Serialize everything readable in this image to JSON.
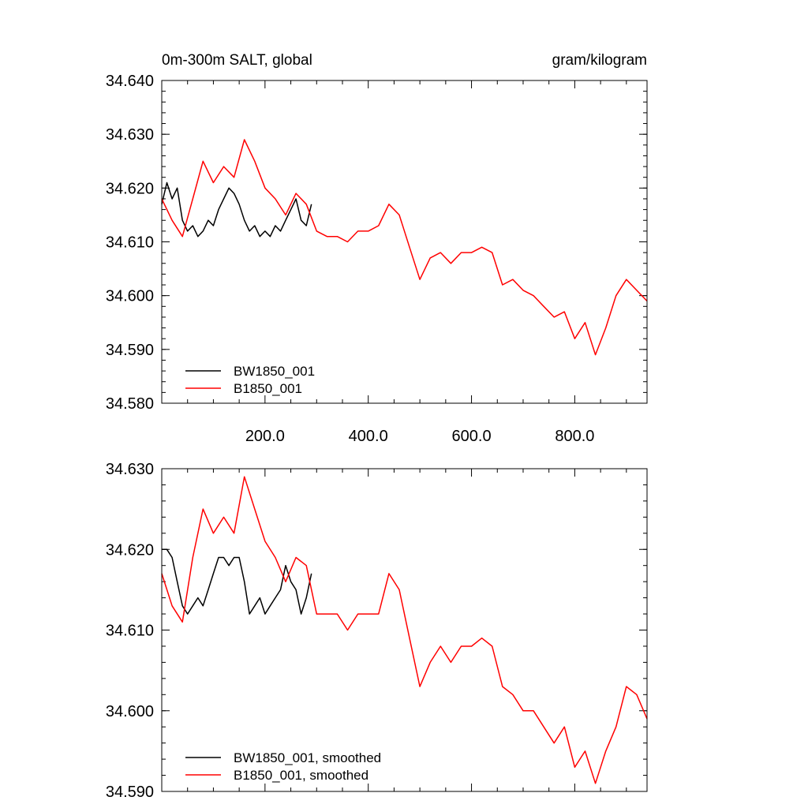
{
  "chart_data": [
    {
      "type": "line",
      "title_left": "0m-300m SALT, global",
      "title_right": "gram/kilogram",
      "xlim": [
        0,
        940
      ],
      "ylim": [
        34.58,
        34.64
      ],
      "x_ticks": [
        200,
        400,
        600,
        800
      ],
      "x_tick_labels": [
        "200.0",
        "400.0",
        "600.0",
        "800.0"
      ],
      "y_ticks": [
        34.58,
        34.59,
        34.6,
        34.61,
        34.62,
        34.63,
        34.64
      ],
      "y_tick_labels": [
        "34.580",
        "34.590",
        "34.600",
        "34.610",
        "34.620",
        "34.630",
        "34.640"
      ],
      "legend_position": "bottom-left",
      "colors": {
        "black": "#000000",
        "red": "#ff0000"
      },
      "series": [
        {
          "name": "BW1850_001",
          "color": "#000000",
          "x": [
            0,
            10,
            20,
            30,
            40,
            50,
            60,
            70,
            80,
            90,
            100,
            110,
            120,
            130,
            140,
            150,
            160,
            170,
            180,
            190,
            200,
            210,
            220,
            230,
            240,
            250,
            260,
            270,
            280,
            290
          ],
          "y": [
            34.617,
            34.621,
            34.618,
            34.62,
            34.614,
            34.612,
            34.613,
            34.611,
            34.612,
            34.614,
            34.613,
            34.616,
            34.618,
            34.62,
            34.619,
            34.617,
            34.614,
            34.612,
            34.613,
            34.611,
            34.612,
            34.611,
            34.613,
            34.612,
            34.614,
            34.616,
            34.618,
            34.614,
            34.613,
            34.617
          ]
        },
        {
          "name": "B1850_001",
          "color": "#ff0000",
          "x": [
            0,
            20,
            40,
            60,
            80,
            100,
            120,
            140,
            160,
            180,
            200,
            220,
            240,
            260,
            280,
            300,
            320,
            340,
            360,
            380,
            400,
            420,
            440,
            460,
            480,
            500,
            520,
            540,
            560,
            580,
            600,
            620,
            640,
            660,
            680,
            700,
            720,
            740,
            760,
            780,
            800,
            820,
            840,
            860,
            880,
            900,
            920,
            940
          ],
          "y": [
            34.618,
            34.614,
            34.611,
            34.618,
            34.625,
            34.621,
            34.624,
            34.622,
            34.629,
            34.625,
            34.62,
            34.618,
            34.615,
            34.619,
            34.617,
            34.612,
            34.611,
            34.611,
            34.61,
            34.612,
            34.612,
            34.613,
            34.617,
            34.615,
            34.609,
            34.603,
            34.607,
            34.608,
            34.606,
            34.608,
            34.608,
            34.609,
            34.608,
            34.602,
            34.603,
            34.601,
            34.6,
            34.598,
            34.596,
            34.597,
            34.592,
            34.595,
            34.589,
            34.594,
            34.6,
            34.603,
            34.601,
            34.599
          ]
        }
      ]
    },
    {
      "type": "line",
      "xlim": [
        0,
        940
      ],
      "ylim": [
        34.59,
        34.63
      ],
      "y_ticks": [
        34.59,
        34.6,
        34.61,
        34.62,
        34.63
      ],
      "y_tick_labels": [
        "34.590",
        "34.600",
        "34.610",
        "34.620",
        "34.630"
      ],
      "legend_position": "bottom-left",
      "series": [
        {
          "name": "BW1850_001, smoothed",
          "color": "#000000",
          "x": [
            0,
            10,
            20,
            30,
            40,
            50,
            60,
            70,
            80,
            90,
            100,
            110,
            120,
            130,
            140,
            150,
            160,
            170,
            180,
            190,
            200,
            210,
            220,
            230,
            240,
            250,
            260,
            270,
            280,
            290
          ],
          "y": [
            34.62,
            34.62,
            34.619,
            34.616,
            34.613,
            34.612,
            34.613,
            34.614,
            34.613,
            34.615,
            34.617,
            34.619,
            34.619,
            34.618,
            34.619,
            34.619,
            34.616,
            34.612,
            34.613,
            34.614,
            34.612,
            34.613,
            34.614,
            34.615,
            34.618,
            34.616,
            34.615,
            34.612,
            34.614,
            34.617
          ]
        },
        {
          "name": "B1850_001, smoothed",
          "color": "#ff0000",
          "x": [
            0,
            20,
            40,
            60,
            80,
            100,
            120,
            140,
            160,
            180,
            200,
            220,
            240,
            260,
            280,
            300,
            320,
            340,
            360,
            380,
            400,
            420,
            440,
            460,
            480,
            500,
            520,
            540,
            560,
            580,
            600,
            620,
            640,
            660,
            680,
            700,
            720,
            740,
            760,
            780,
            800,
            820,
            840,
            860,
            880,
            900,
            920,
            940
          ],
          "y": [
            34.617,
            34.613,
            34.611,
            34.619,
            34.625,
            34.622,
            34.624,
            34.622,
            34.629,
            34.625,
            34.621,
            34.619,
            34.616,
            34.619,
            34.618,
            34.612,
            34.612,
            34.612,
            34.61,
            34.612,
            34.612,
            34.612,
            34.617,
            34.615,
            34.609,
            34.603,
            34.606,
            34.608,
            34.606,
            34.608,
            34.608,
            34.609,
            34.608,
            34.603,
            34.602,
            34.6,
            34.6,
            34.598,
            34.596,
            34.598,
            34.593,
            34.595,
            34.591,
            34.595,
            34.598,
            34.603,
            34.602,
            34.599
          ]
        }
      ]
    }
  ]
}
